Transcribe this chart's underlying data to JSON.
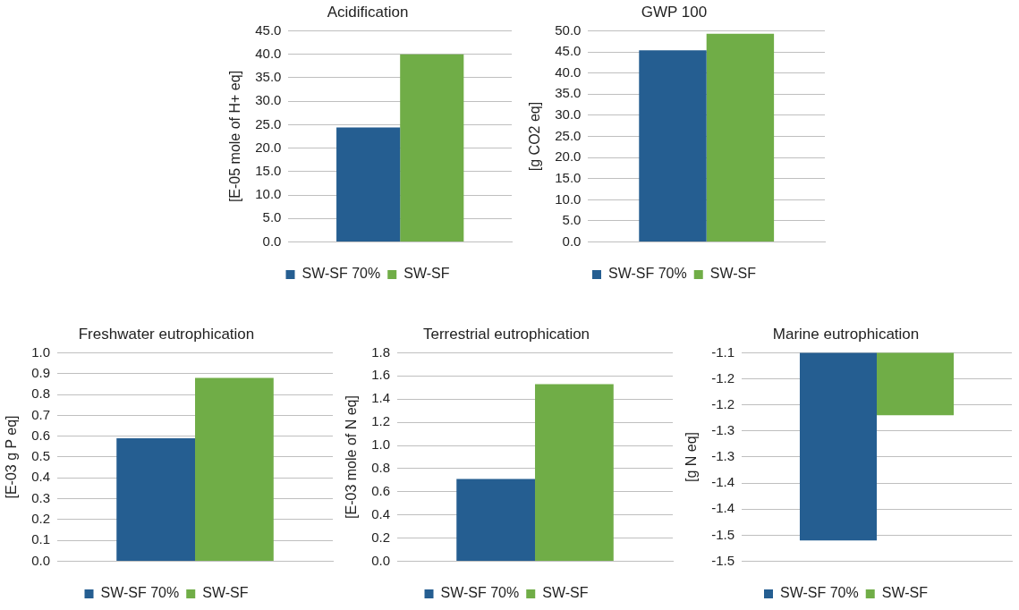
{
  "chart_data": [
    {
      "type": "bar",
      "title": "Acidification",
      "ylabel": "[E-05 mole of H+ eq]",
      "categories": [
        null
      ],
      "grid": "y",
      "legend": "bottom",
      "series": [
        {
          "name": "SW-SF 70%",
          "color": "#255e91",
          "values": [
            24.4
          ]
        },
        {
          "name": "SW-SF",
          "color": "#70ad47",
          "values": [
            40.0
          ]
        }
      ],
      "ylim": [
        0,
        45
      ],
      "yticks": [
        {
          "value": 0,
          "label": "0.0"
        },
        {
          "value": 5,
          "label": "5.0"
        },
        {
          "value": 10,
          "label": "10.0"
        },
        {
          "value": 15,
          "label": "15.0"
        },
        {
          "value": 20,
          "label": "20.0"
        },
        {
          "value": 25,
          "label": "25.0"
        },
        {
          "value": 30,
          "label": "30.0"
        },
        {
          "value": 35,
          "label": "35.0"
        },
        {
          "value": 40,
          "label": "40.0"
        },
        {
          "value": 45,
          "label": "45.0"
        }
      ]
    },
    {
      "type": "bar",
      "title": "GWP 100",
      "ylabel": "[g CO2 eq]",
      "categories": [
        null
      ],
      "grid": "y",
      "legend": "bottom",
      "series": [
        {
          "name": "SW-SF 70%",
          "color": "#255e91",
          "values": [
            45.4
          ]
        },
        {
          "name": "SW-SF",
          "color": "#70ad47",
          "values": [
            49.3
          ]
        }
      ],
      "ylim": [
        0,
        50
      ],
      "yticks": [
        {
          "value": 0,
          "label": "0.0"
        },
        {
          "value": 5,
          "label": "5.0"
        },
        {
          "value": 10,
          "label": "10.0"
        },
        {
          "value": 15,
          "label": "15.0"
        },
        {
          "value": 20,
          "label": "20.0"
        },
        {
          "value": 25,
          "label": "25.0"
        },
        {
          "value": 30,
          "label": "30.0"
        },
        {
          "value": 35,
          "label": "35.0"
        },
        {
          "value": 40,
          "label": "40.0"
        },
        {
          "value": 45,
          "label": "45.0"
        },
        {
          "value": 50,
          "label": "50.0"
        }
      ]
    },
    {
      "type": "bar",
      "title": "Freshwater eutrophication",
      "ylabel": "[E-03 g P eq]",
      "categories": [
        null
      ],
      "grid": "y",
      "legend": "bottom",
      "series": [
        {
          "name": "SW-SF 70%",
          "color": "#255e91",
          "values": [
            0.59
          ]
        },
        {
          "name": "SW-SF",
          "color": "#70ad47",
          "values": [
            0.88
          ]
        }
      ],
      "ylim": [
        0,
        1
      ],
      "yticks": [
        {
          "value": 0,
          "label": "0.0"
        },
        0.1,
        0.2,
        0.3,
        0.4,
        0.5,
        0.6,
        0.7,
        0.8,
        0.9,
        {
          "value": 1,
          "label": "1.0"
        }
      ]
    },
    {
      "type": "bar",
      "title": "Terrestrial eutrophication",
      "ylabel": "[E-03 mole of N eq]",
      "categories": [
        null
      ],
      "grid": "y",
      "legend": "bottom",
      "series": [
        {
          "name": "SW-SF 70%",
          "color": "#255e91",
          "values": [
            0.71
          ]
        },
        {
          "name": "SW-SF",
          "color": "#70ad47",
          "values": [
            1.53
          ]
        }
      ],
      "ylim": [
        0,
        1.8
      ],
      "yticks": [
        {
          "value": 0,
          "label": "0.0"
        },
        0.2,
        0.4,
        0.6,
        0.8,
        {
          "value": 1,
          "label": "1.0"
        },
        1.2,
        1.4,
        1.6,
        1.8
      ]
    },
    {
      "type": "bar",
      "title": "Marine eutrophication",
      "ylabel": "[g N eq]",
      "categories": [
        null
      ],
      "grid": "y",
      "legend": "bottom",
      "series": [
        {
          "name": "SW-SF 70%",
          "color": "#255e91",
          "values": [
            -1.46
          ]
        },
        {
          "name": "SW-SF",
          "color": "#70ad47",
          "values": [
            -1.22
          ]
        }
      ],
      "ylim": [
        -1.5,
        -1.1
      ],
      "yticks": [
        -1.5,
        {
          "value": -1.45,
          "label": "-1.5"
        },
        -1.4,
        {
          "value": -1.35,
          "label": "-1.4"
        },
        -1.3,
        {
          "value": -1.25,
          "label": "-1.3"
        },
        -1.2,
        {
          "value": -1.15,
          "label": "-1.2"
        },
        -1.1
      ]
    }
  ]
}
